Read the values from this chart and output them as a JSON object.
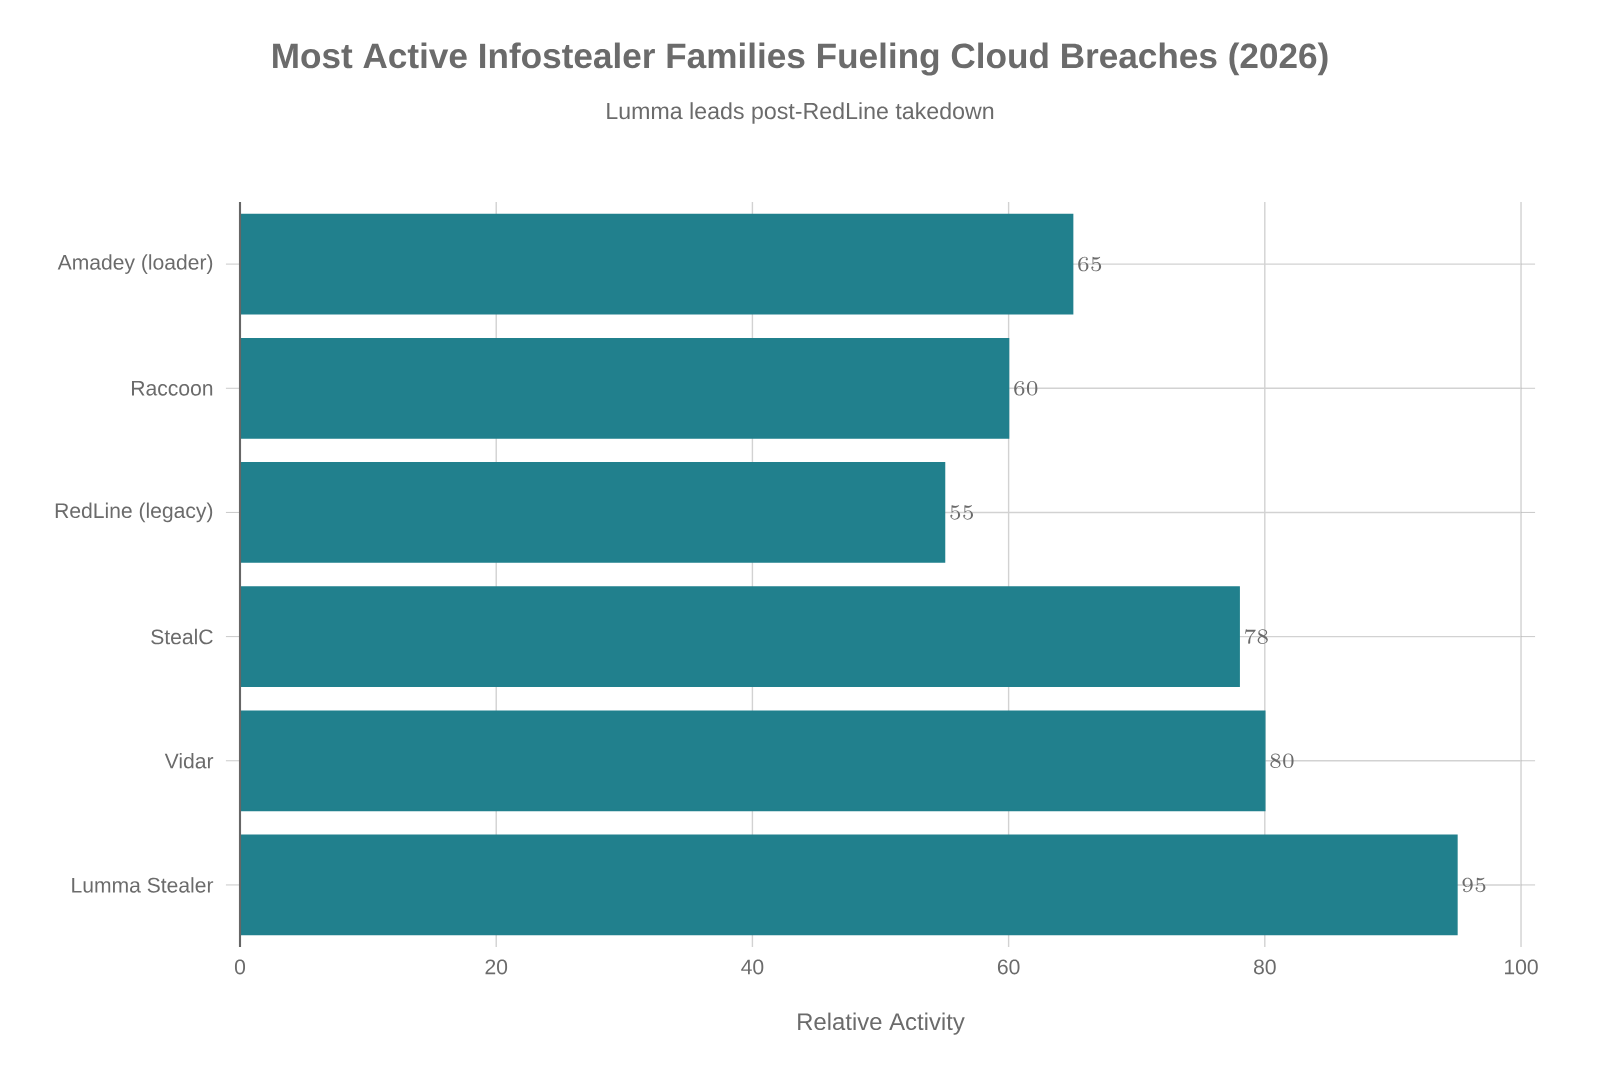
{
  "chart_data": {
    "type": "bar",
    "orientation": "horizontal",
    "title": "Most Active Infostealer Families Fueling Cloud Breaches (2026)",
    "subtitle": "Lumma leads post-RedLine takedown",
    "xlabel": "Relative Activity",
    "categories": [
      "Amadey (loader)",
      "Raccoon",
      "RedLine (legacy)",
      "StealC",
      "Vidar",
      "Lumma Stealer"
    ],
    "values": [
      65,
      60,
      55,
      78,
      80,
      95
    ],
    "color": "#21808d",
    "xlim": [
      0,
      100
    ],
    "xticks": [
      0,
      20,
      40,
      60,
      80,
      100
    ],
    "grid": true,
    "data_labels": true
  }
}
